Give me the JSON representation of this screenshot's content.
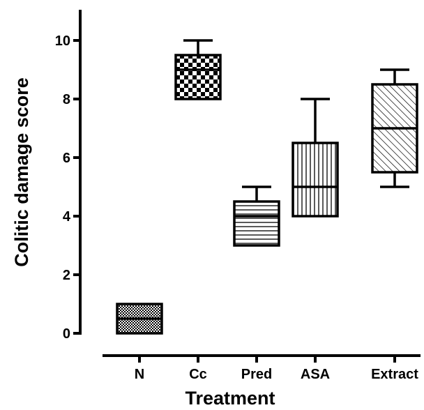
{
  "chart_data": {
    "type": "box",
    "xlabel": "Treatment",
    "ylabel": "Colitic damage score",
    "ylim": [
      0,
      10
    ],
    "yticks": [
      "0",
      "2",
      "4",
      "6",
      "8",
      "10"
    ],
    "categories": [
      "N",
      "Cc",
      "Pred",
      "ASA",
      "Extract"
    ],
    "boxes": [
      {
        "category": "N",
        "min": 0,
        "q1": 0,
        "median": 0.5,
        "q3": 1,
        "max": 1,
        "pattern": "fine-dots"
      },
      {
        "category": "Cc",
        "min": 8,
        "q1": 8,
        "median": 9,
        "q3": 9.5,
        "max": 10,
        "pattern": "checker"
      },
      {
        "category": "Pred",
        "min": 3,
        "q1": 3,
        "median": 4,
        "q3": 4.5,
        "max": 5,
        "pattern": "horizontal-lines"
      },
      {
        "category": "ASA",
        "min": 4,
        "q1": 4,
        "median": 5,
        "q3": 6.5,
        "max": 8,
        "pattern": "vertical-lines"
      },
      {
        "category": "Extract",
        "min": 5,
        "q1": 5.5,
        "median": 7,
        "q3": 8.5,
        "max": 9,
        "pattern": "diagonal-lines"
      }
    ],
    "grid": false,
    "legend": "none",
    "colors": {
      "stroke": "#000000",
      "background": "#ffffff"
    }
  }
}
